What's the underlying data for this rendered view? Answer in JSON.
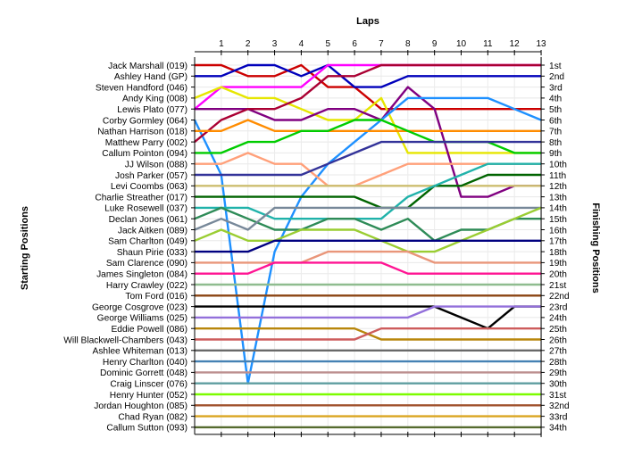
{
  "chart_data": {
    "type": "line",
    "subtype": "race-position-chart",
    "xlabel": "Laps",
    "ylabel_left": "Starting Positions",
    "ylabel_right": "Finishing Positions",
    "x": [
      0,
      1,
      2,
      3,
      4,
      5,
      6,
      7,
      8,
      9,
      10,
      11,
      12,
      13
    ],
    "x_tick_labels": [
      "1",
      "2",
      "3",
      "4",
      "5",
      "6",
      "7",
      "8",
      "9",
      "10",
      "11",
      "12",
      "13"
    ],
    "ylim": [
      1,
      34
    ],
    "y_inverted": true,
    "grid": true,
    "starting_grid": [
      "Jack Marshall (019)",
      "Ashley Hand (GP)",
      "Steven Handford (046)",
      "Andy King (008)",
      "Lewis Plato (077)",
      "Corby Gormley (064)",
      "Nathan Harrison (018)",
      "Matthew Parry (002)",
      "Callum Pointon (094)",
      "JJ Wilson (088)",
      "Josh Parker (057)",
      "Levi Coombs (063)",
      "Charlie Streather (017)",
      "Luke Rosewell (037)",
      "Declan Jones (061)",
      "Jack Aitken (089)",
      "Sam Charlton (049)",
      "Shaun Pirie (033)",
      "Sam Clarence (090)",
      "James Singleton (084)",
      "Harry Crawley (022)",
      "Tom Ford (016)",
      "George Cosgrove (023)",
      "George Williams (025)",
      "Eddie Powell (086)",
      "Will Blackwell-Chambers (043)",
      "Ashlee Whiteman (013)",
      "Henry Charlton (040)",
      "Dominic Gorrett (048)",
      "Craig Linscer (076)",
      "Henry Hunter (052)",
      "Jordan Houghton (085)",
      "Chad Ryan (082)",
      "Callum Sutton (093)"
    ],
    "finishing_labels": [
      "1st",
      "2nd",
      "3rd",
      "4th",
      "5th",
      "6th",
      "7th",
      "8th",
      "9th",
      "10th",
      "11th",
      "12th",
      "13th",
      "14th",
      "15th",
      "16th",
      "17th",
      "18th",
      "19th",
      "20th",
      "21st",
      "22nd",
      "23rd",
      "24th",
      "25th",
      "26th",
      "27th",
      "28th",
      "29th",
      "30th",
      "31st",
      "32nd",
      "33rd",
      "34th"
    ],
    "series": [
      {
        "color": "#cc0000",
        "values": [
          1,
          1,
          2,
          2,
          1,
          3,
          3,
          5,
          5,
          5,
          5,
          5,
          5,
          5
        ]
      },
      {
        "color": "#0000bb",
        "values": [
          2,
          2,
          1,
          1,
          2,
          1,
          3,
          3,
          2,
          2,
          2,
          2,
          2,
          2
        ]
      },
      {
        "color": "#ff00ff",
        "values": [
          5,
          3,
          3,
          3,
          3,
          1,
          1,
          1,
          1,
          1,
          1,
          1,
          1,
          1
        ]
      },
      {
        "color": "#e6e600",
        "values": [
          4,
          3,
          4,
          4,
          5,
          6,
          6,
          4,
          9,
          9,
          9,
          9,
          9,
          9
        ]
      },
      {
        "color": "#800080",
        "values": [
          5,
          5,
          5,
          6,
          6,
          5,
          5,
          6,
          3,
          5,
          13,
          13,
          12,
          12
        ]
      },
      {
        "color": "#1e90ff",
        "values": [
          6,
          11,
          30,
          18,
          13,
          10,
          8,
          6,
          4,
          4,
          4,
          4,
          5,
          6
        ]
      },
      {
        "color": "#aa0033",
        "values": [
          8,
          6,
          5,
          5,
          4,
          2,
          2,
          1,
          1,
          1,
          1,
          1,
          1,
          1
        ]
      },
      {
        "color": "#ff8c00",
        "values": [
          7,
          7,
          6,
          7,
          7,
          7,
          7,
          7,
          7,
          7,
          7,
          7,
          7,
          7
        ]
      },
      {
        "color": "#00cc00",
        "values": [
          9,
          9,
          8,
          8,
          7,
          7,
          6,
          6,
          7,
          8,
          8,
          8,
          9,
          9
        ]
      },
      {
        "color": "#ffa07a",
        "values": [
          10,
          10,
          9,
          10,
          10,
          12,
          12,
          11,
          10,
          10,
          10,
          10,
          10,
          10
        ]
      },
      {
        "color": "#333399",
        "values": [
          11,
          11,
          11,
          11,
          11,
          10,
          9,
          8,
          8,
          8,
          8,
          8,
          8,
          8
        ]
      },
      {
        "color": "#cdbe70",
        "values": [
          12,
          12,
          12,
          12,
          12,
          12,
          12,
          12,
          12,
          12,
          12,
          12,
          12,
          12
        ]
      },
      {
        "color": "#006400",
        "values": [
          13,
          13,
          13,
          13,
          13,
          13,
          13,
          14,
          14,
          12,
          12,
          11,
          11,
          11
        ]
      },
      {
        "color": "#20b2aa",
        "values": [
          14,
          14,
          14,
          15,
          15,
          15,
          15,
          15,
          13,
          12,
          11,
          10,
          10,
          10
        ]
      },
      {
        "color": "#2e8b57",
        "values": [
          15,
          14,
          15,
          16,
          16,
          15,
          15,
          16,
          15,
          17,
          16,
          16,
          15,
          15
        ]
      },
      {
        "color": "#778899",
        "values": [
          16,
          15,
          16,
          14,
          14,
          14,
          14,
          14,
          14,
          14,
          14,
          14,
          14,
          14
        ]
      },
      {
        "color": "#9acd32",
        "values": [
          17,
          16,
          17,
          17,
          16,
          16,
          16,
          17,
          18,
          18,
          17,
          16,
          15,
          14
        ]
      },
      {
        "color": "#000080",
        "values": [
          18,
          18,
          18,
          17,
          17,
          17,
          17,
          17,
          17,
          17,
          17,
          17,
          17,
          17
        ]
      },
      {
        "color": "#e9967a",
        "values": [
          19,
          19,
          19,
          19,
          19,
          18,
          18,
          18,
          18,
          19,
          19,
          19,
          19,
          19
        ]
      },
      {
        "color": "#ff1493",
        "values": [
          20,
          20,
          20,
          19,
          19,
          19,
          19,
          19,
          20,
          20,
          20,
          20,
          20,
          20
        ]
      },
      {
        "color": "#8fbc8f",
        "values": [
          21,
          21,
          21,
          21,
          21,
          21,
          21,
          21,
          21,
          21,
          21,
          21,
          21,
          21
        ]
      },
      {
        "color": "#8b4513",
        "values": [
          22,
          22,
          22,
          22,
          22,
          22,
          22,
          22,
          22,
          22,
          22,
          22,
          22,
          22
        ]
      },
      {
        "color": "#000000",
        "values": [
          23,
          23,
          23,
          23,
          23,
          23,
          23,
          23,
          23,
          23,
          24,
          25,
          23,
          23
        ]
      },
      {
        "color": "#9370db",
        "values": [
          24,
          24,
          24,
          24,
          24,
          24,
          24,
          24,
          24,
          23,
          23,
          23,
          23,
          23
        ]
      },
      {
        "color": "#b8860b",
        "values": [
          25,
          25,
          25,
          25,
          25,
          25,
          25,
          26,
          26,
          26,
          26,
          26,
          26,
          26
        ]
      },
      {
        "color": "#cd5c5c",
        "values": [
          26,
          26,
          26,
          26,
          26,
          26,
          26,
          25,
          25,
          25,
          25,
          25,
          25,
          25
        ]
      },
      {
        "color": "#696969",
        "values": [
          27,
          27,
          27,
          27,
          27,
          27,
          27,
          27,
          27,
          27,
          27,
          27,
          27,
          27
        ]
      },
      {
        "color": "#4682b4",
        "values": [
          28,
          28,
          28,
          28,
          28,
          28,
          28,
          28,
          28,
          28,
          28,
          28,
          28,
          28
        ]
      },
      {
        "color": "#bc8f8f",
        "values": [
          29,
          29,
          29,
          29,
          29,
          29,
          29,
          29,
          29,
          29,
          29,
          29,
          29,
          29
        ]
      },
      {
        "color": "#5f9ea0",
        "values": [
          30,
          30,
          30,
          30,
          30,
          30,
          30,
          30,
          30,
          30,
          30,
          30,
          30,
          30
        ]
      },
      {
        "color": "#7cfc00",
        "values": [
          31,
          31,
          31,
          31,
          31,
          31,
          31,
          31,
          31,
          31,
          31,
          31,
          31,
          31
        ]
      },
      {
        "color": "#a0522d",
        "values": [
          32,
          32,
          32,
          32,
          32,
          32,
          32,
          32,
          32,
          32,
          32,
          32,
          32,
          32
        ]
      },
      {
        "color": "#daa520",
        "values": [
          33,
          33,
          33,
          33,
          33,
          33,
          33,
          33,
          33,
          33,
          33,
          33,
          33,
          33
        ]
      },
      {
        "color": "#556b2f",
        "values": [
          34,
          34,
          34,
          34,
          34,
          34,
          34,
          34,
          34,
          34,
          34,
          34,
          34,
          34
        ]
      }
    ]
  }
}
